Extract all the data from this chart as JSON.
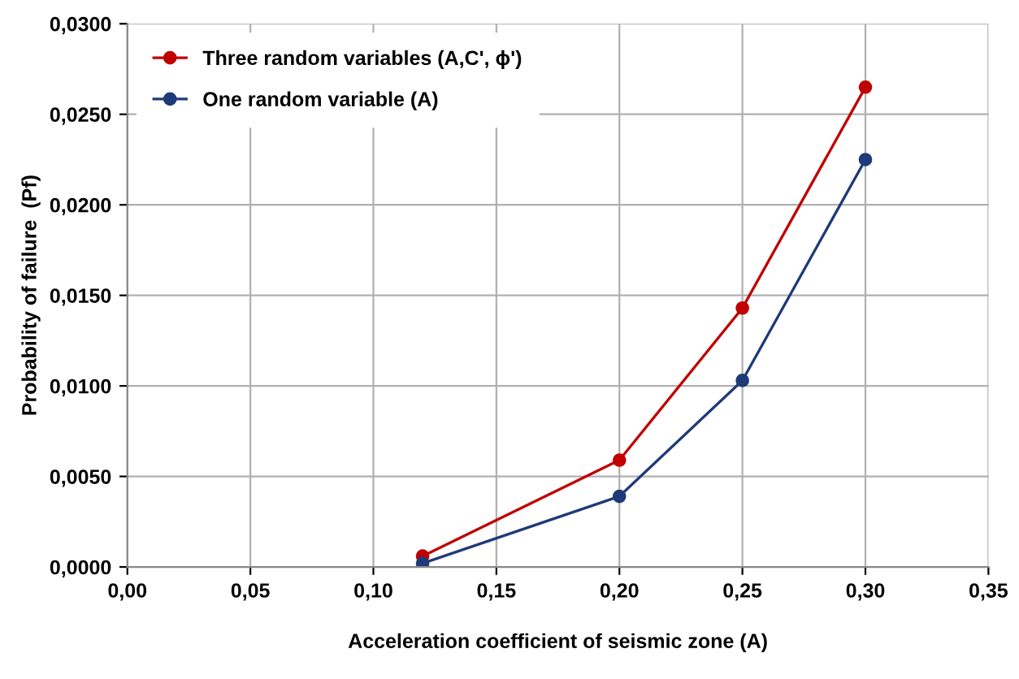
{
  "chart_data": {
    "type": "line",
    "xlabel": "Acceleration coefficient of seismic zone (A)",
    "ylabel": "Probability of failure  (Pf)",
    "series": [
      {
        "name": "Three random variables (A,C', ϕ')",
        "color": "#c00000",
        "x": [
          0.12,
          0.2,
          0.25,
          0.3
        ],
        "values": [
          0.0006,
          0.0059,
          0.0143,
          0.0265
        ]
      },
      {
        "name": "One random variable (A)",
        "color": "#1f3a78",
        "x": [
          0.12,
          0.2,
          0.25,
          0.3
        ],
        "values": [
          0.0002,
          0.0039,
          0.0103,
          0.0225
        ]
      }
    ],
    "xlim": [
      0,
      0.35
    ],
    "xticks": [
      {
        "value": 0,
        "label": "0,00"
      },
      {
        "value": 0.05,
        "label": "0,05"
      },
      {
        "value": 0.1,
        "label": "0,10"
      },
      {
        "value": 0.15,
        "label": "0,15"
      },
      {
        "value": 0.2,
        "label": "0,20"
      },
      {
        "value": 0.25,
        "label": "0,25"
      },
      {
        "value": 0.3,
        "label": "0,30"
      },
      {
        "value": 0.35,
        "label": "0,35"
      }
    ],
    "ylim": [
      0,
      0.03
    ],
    "yticks": [
      {
        "value": 0,
        "label": "0,0000"
      },
      {
        "value": 0.005,
        "label": "0,0050"
      },
      {
        "value": 0.01,
        "label": "0,0100"
      },
      {
        "value": 0.015,
        "label": "0,0150"
      },
      {
        "value": 0.02,
        "label": "0,0200"
      },
      {
        "value": 0.025,
        "label": "0,0250"
      },
      {
        "value": 0.03,
        "label": "0,0300"
      }
    ],
    "grid": true,
    "legend": "top left",
    "marker": "circle",
    "line_style": "solid"
  }
}
